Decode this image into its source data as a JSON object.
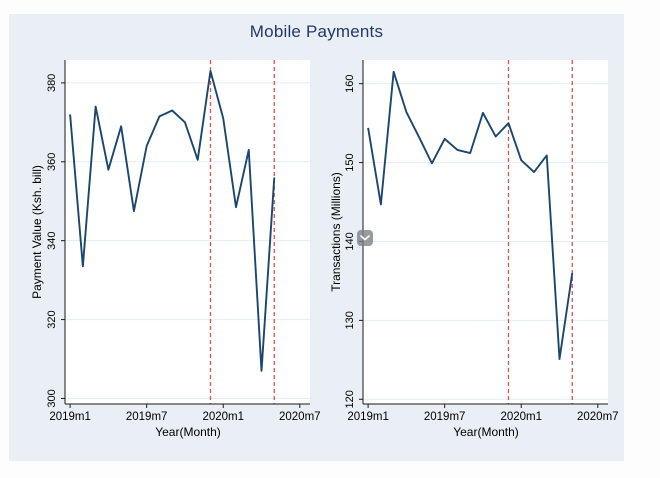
{
  "figure": {
    "title": "Mobile Payments",
    "colors": {
      "page_background": "#fdfdfd",
      "panel_background": "#e9eff4",
      "plot_background": "#ffffff",
      "gridline": "#e4edf3",
      "axis": "#1a1a1a",
      "title_text": "#21386b",
      "tick_text": "#000000"
    }
  },
  "overlay_button": {
    "icon": "chevron-down"
  },
  "chart_data": [
    {
      "type": "line",
      "title": "",
      "ylabel": "Payment Value (Ksh. bill)",
      "xlabel": "Year(Month)",
      "categories": [
        "2019m1",
        "2019m2",
        "2019m3",
        "2019m4",
        "2019m5",
        "2019m6",
        "2019m7",
        "2019m8",
        "2019m9",
        "2019m10",
        "2019m11",
        "2019m12",
        "2020m1",
        "2020m2",
        "2020m3",
        "2020m4",
        "2020m5"
      ],
      "values": [
        372,
        333.5,
        374,
        358,
        369,
        347.5,
        364,
        371.5,
        373,
        370,
        360.5,
        383,
        371,
        348.5,
        363,
        307,
        356
      ],
      "yticks": [
        300,
        320,
        340,
        360,
        380
      ],
      "ylim": [
        298.6,
        385.8
      ],
      "xticks": [
        {
          "label": "2019m1",
          "month": 0
        },
        {
          "label": "2019m7",
          "month": 6
        },
        {
          "label": "2020m1",
          "month": 12
        },
        {
          "label": "2020m7",
          "month": 18
        }
      ],
      "xlim_months": [
        -0.4,
        18.8
      ],
      "grid": true,
      "legend": "none",
      "line_color": "#1a476f",
      "reference_lines": {
        "months": [
          11,
          16
        ],
        "color": "#e0514f",
        "style": "dashed"
      }
    },
    {
      "type": "line",
      "title": "",
      "ylabel": "Transactions (Millions)",
      "xlabel": "Year(Month)",
      "categories": [
        "2019m1",
        "2019m2",
        "2019m3",
        "2019m4",
        "2019m5",
        "2019m6",
        "2019m7",
        "2019m8",
        "2019m9",
        "2019m10",
        "2019m11",
        "2019m12",
        "2020m1",
        "2020m2",
        "2020m3",
        "2020m4",
        "2020m5"
      ],
      "values": [
        154.4,
        144.7,
        161.5,
        156.4,
        153.2,
        149.9,
        153.0,
        151.6,
        151.2,
        156.3,
        153.3,
        155.0,
        150.3,
        148.8,
        150.9,
        125.1,
        136.0
      ],
      "yticks": [
        120,
        130,
        140,
        150,
        160
      ],
      "ylim": [
        119.4,
        163.0
      ],
      "xticks": [
        {
          "label": "2019m1",
          "month": 0
        },
        {
          "label": "2019m7",
          "month": 6
        },
        {
          "label": "2020m1",
          "month": 12
        },
        {
          "label": "2020m7",
          "month": 18
        }
      ],
      "xlim_months": [
        -0.4,
        18.8
      ],
      "grid": true,
      "legend": "none",
      "line_color": "#1a476f",
      "reference_lines": {
        "months": [
          11,
          16
        ],
        "color": "#e0514f",
        "style": "dashed"
      }
    }
  ]
}
